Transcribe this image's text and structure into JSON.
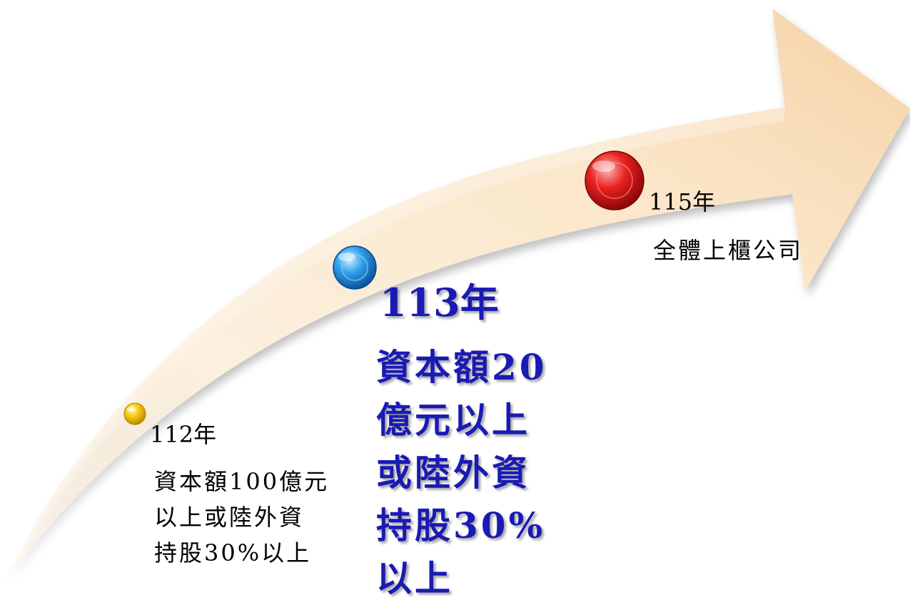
{
  "colors": {
    "arrow_light": "#fdf0de",
    "arrow_dark": "#f6d6ad",
    "highlight_text": "#1a1ab4",
    "marker_112": "#f3c20a",
    "marker_113": "#2d9be8",
    "marker_115": "#e21b1b"
  },
  "milestones": [
    {
      "year": "112年",
      "desc_lines": [
        "資本額100億元",
        "以上或陸外資",
        "持股30%以上"
      ],
      "marker_icon": "yellow-dot-icon",
      "highlighted": false
    },
    {
      "year": "113年",
      "desc_lines": [
        "資本額20",
        "億元以上",
        "或陸外資",
        "持股30%",
        "以上"
      ],
      "marker_icon": "blue-dot-icon",
      "highlighted": true
    },
    {
      "year": "115年",
      "desc_lines": [
        "全體上櫃公司"
      ],
      "marker_icon": "red-dot-icon",
      "highlighted": false
    }
  ]
}
